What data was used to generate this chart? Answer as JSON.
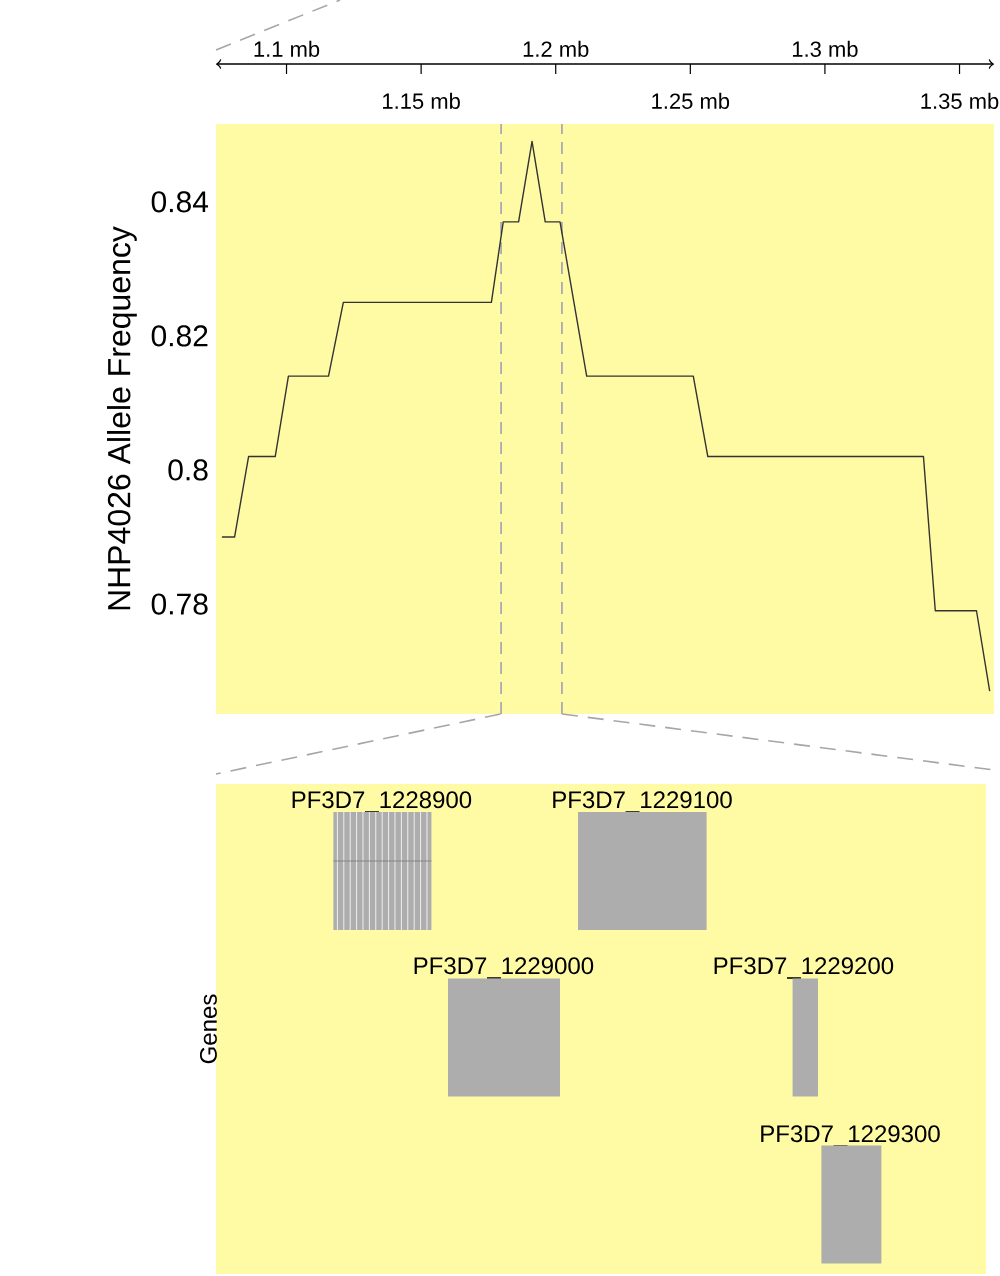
{
  "chart_data": [
    {
      "type": "line",
      "ylabel": "NHP4026 Allele Frequency",
      "xlim": [
        1.0738,
        1.3628
      ],
      "ylim": [
        0.7636,
        0.8516
      ],
      "x2lim": [
        1.0738,
        1.3628
      ],
      "x2ticks": [
        {
          "value": 1.1,
          "label": "1.1 mb"
        },
        {
          "value": 1.2,
          "label": "1.2 mb"
        },
        {
          "value": 1.3,
          "label": "1.3 mb"
        }
      ],
      "xticks": [
        {
          "value": 1.15,
          "label": "1.15 mb"
        },
        {
          "value": 1.25,
          "label": "1.25 mb"
        },
        {
          "value": 1.35,
          "label": "1.35 mb"
        }
      ],
      "yticks": [
        0.78,
        0.8,
        0.82,
        0.84
      ],
      "grid": false,
      "series": [
        {
          "color": "#333333",
          "x": [
            1.076,
            1.0807,
            1.0859,
            1.0958,
            1.1007,
            1.1156,
            1.1211,
            1.1761,
            1.1805,
            1.1862,
            1.1912,
            1.1961,
            1.2016,
            1.2115,
            1.2511,
            1.2565,
            1.3366,
            1.341,
            1.3563,
            1.3612
          ],
          "values": [
            0.79,
            0.79,
            0.802,
            0.802,
            0.814,
            0.814,
            0.825,
            0.825,
            0.837,
            0.837,
            0.849,
            0.837,
            0.837,
            0.814,
            0.814,
            0.802,
            0.802,
            0.779,
            0.779,
            0.767
          ]
        }
      ],
      "ref_lines": [
        {
          "axis": "x",
          "value": 1.1797,
          "color": "#a0a0b0",
          "line_style": "dashed"
        },
        {
          "axis": "x",
          "value": 1.2023,
          "color": "#a0a0b0",
          "line_style": "dashed"
        }
      ]
    },
    {
      "type": "other",
      "ylabel": "Genes",
      "annotations": [
        "PF3D7_1228900",
        "PF3D7_1229100",
        "PF3D7_1229000",
        "PF3D7_1229200",
        "PF3D7_1229300"
      ]
    }
  ]
}
